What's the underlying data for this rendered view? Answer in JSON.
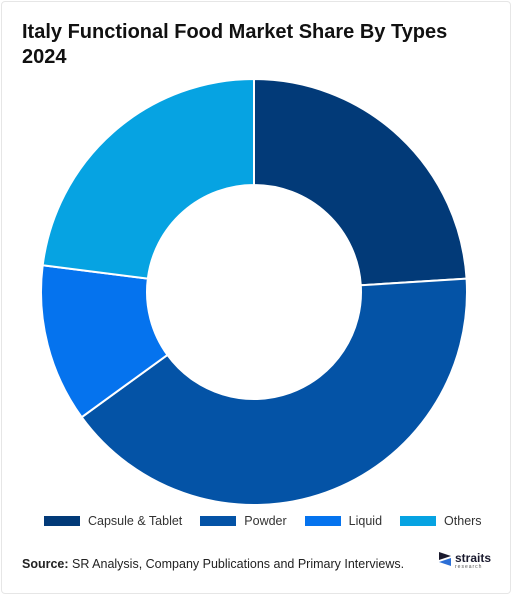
{
  "title": "Italy Functional Food Market Share By Types 2024",
  "chart_data": {
    "type": "pie",
    "style": "donut",
    "title": "Italy Functional Food Market Share By Types 2024",
    "categories": [
      "Capsule & Tablet",
      "Powder",
      "Liquid",
      "Others"
    ],
    "values": [
      24,
      41,
      12,
      23
    ],
    "unit": "%",
    "colors": [
      "#023a78",
      "#0453a6",
      "#0573ee",
      "#06a3e2"
    ],
    "start_angle_deg": 0,
    "direction": "clockwise",
    "legend_position": "bottom"
  },
  "source": {
    "label": "Source:",
    "text": " SR Analysis, Company Publications and Primary Interviews."
  },
  "logo": {
    "word": "straits",
    "sub": "research",
    "icon": "straits-logo-icon"
  }
}
